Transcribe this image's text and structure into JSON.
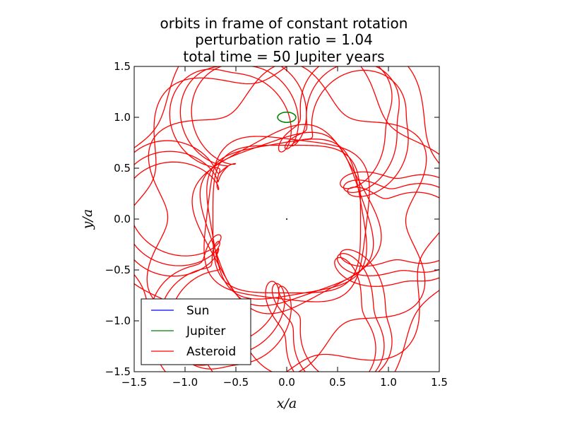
{
  "chart_data": {
    "type": "line",
    "title": [
      "orbits in frame of constant rotation",
      "perturbation ratio = 1.04",
      "total time = 50 Jupiter years"
    ],
    "xlabel": "x/a",
    "ylabel": "y/a",
    "xlim": [
      -1.5,
      1.5
    ],
    "ylim": [
      -1.5,
      1.5
    ],
    "xticks": [
      -1.5,
      -1.0,
      -0.5,
      0.0,
      0.5,
      1.0,
      1.5
    ],
    "yticks": [
      -1.5,
      -1.0,
      -0.5,
      0.0,
      0.5,
      1.0,
      1.5
    ],
    "xtick_labels": [
      "−1.5",
      "−1.0",
      "−0.5",
      "0.0",
      "0.5",
      "1.0",
      "1.5"
    ],
    "ytick_labels": [
      "−1.5",
      "−1.0",
      "−0.5",
      "0.0",
      "0.5",
      "1.0",
      "1.5"
    ],
    "grid": false,
    "legend_position": "lower-left",
    "series": [
      {
        "name": "Sun",
        "color": "#0000ff",
        "shape": "point",
        "center": [
          0.0,
          0.0
        ]
      },
      {
        "name": "Jupiter",
        "color": "#008000",
        "shape": "small-ellipse",
        "center": [
          0.0,
          1.0
        ],
        "semi_axes": [
          0.09,
          0.05
        ]
      },
      {
        "name": "Asteroid",
        "color": "#ff0000",
        "shape": "rotating-frame-trajectory",
        "parameters": {
          "epicycle_count": 6,
          "radial_extent": [
            0.7,
            1.7
          ],
          "inner_square_radius": 0.78,
          "loop_radius": 0.08
        }
      }
    ]
  }
}
